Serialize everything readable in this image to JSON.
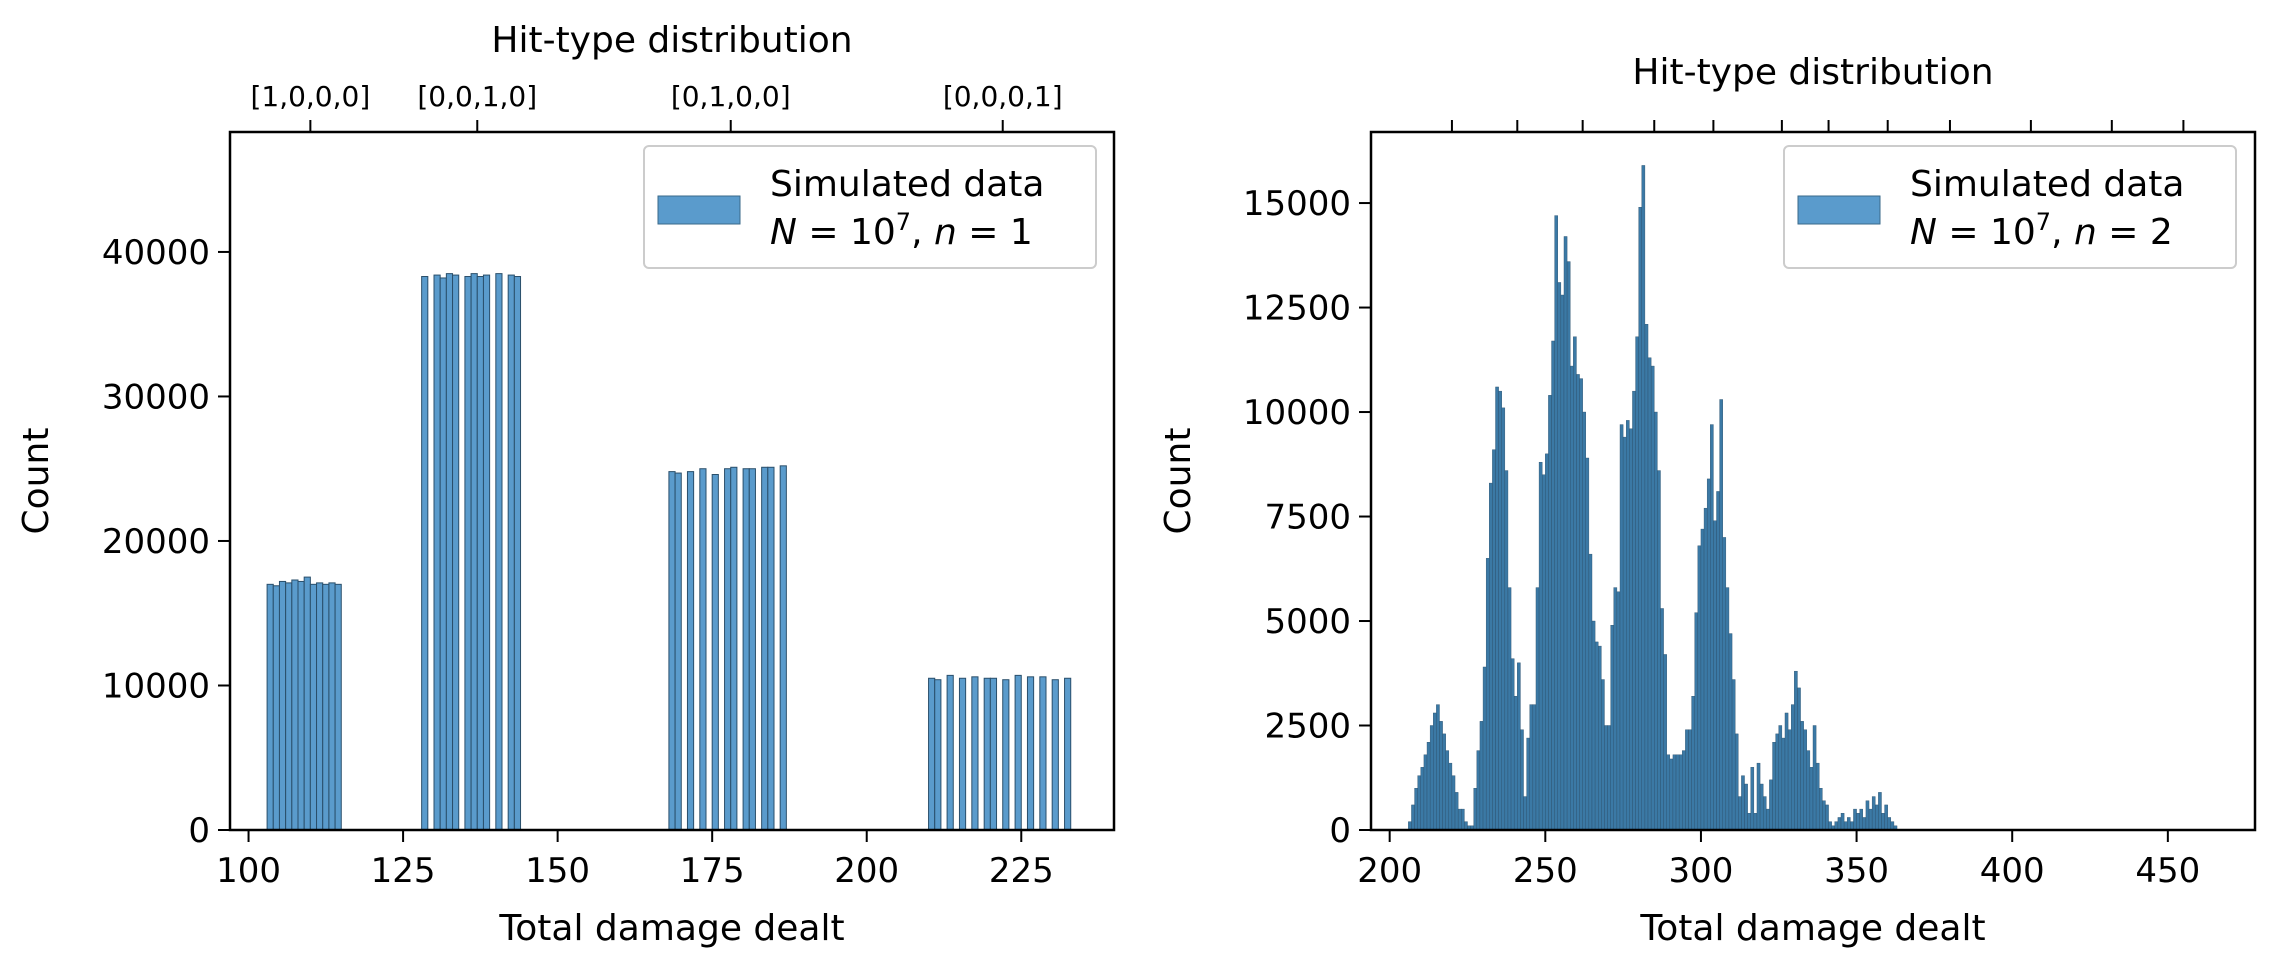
{
  "chart_data": [
    {
      "type": "bar",
      "xlabel": "Total damage dealt",
      "ylabel": "Count",
      "top_axis_title": "Hit-type distribution",
      "top_ticks": [
        {
          "x": 110,
          "label": "[1,0,0,0]"
        },
        {
          "x": 137,
          "label": "[0,0,1,0]"
        },
        {
          "x": 178,
          "label": "[0,1,0,0]"
        },
        {
          "x": 222,
          "label": "[0,0,0,1]"
        }
      ],
      "xlim": [
        97,
        240
      ],
      "ylim": [
        0,
        48300
      ],
      "x_ticks": [
        100,
        125,
        150,
        175,
        200,
        225
      ],
      "y_ticks": [
        0,
        10000,
        20000,
        30000,
        40000
      ],
      "legend": {
        "position": "top-right",
        "line1": "Simulated data",
        "line2_prefix": "N = 10",
        "line2_exp": "7",
        "line2_suffix": ", n = 1"
      },
      "bar_color": "#5a9bcc",
      "series": [
        {
          "name": "Simulated data",
          "bin_width": 1.0,
          "x": [
            103.5,
            104.5,
            105.5,
            106.5,
            107.5,
            108.5,
            109.5,
            110.5,
            111.5,
            112.5,
            113.5,
            114.5,
            128.5,
            130.5,
            131.5,
            132.5,
            133.5,
            135.5,
            136.5,
            137.5,
            138.5,
            140.5,
            142.5,
            143.5,
            168.5,
            169.5,
            171.5,
            173.5,
            175.5,
            177.5,
            178.5,
            180.5,
            181.5,
            183.5,
            184.5,
            186.5,
            210.5,
            211.5,
            213.5,
            215.5,
            217.5,
            219.5,
            220.5,
            222.5,
            224.5,
            226.5,
            228.5,
            230.5,
            232.5
          ],
          "values": [
            17000,
            16900,
            17200,
            17100,
            17300,
            17200,
            17500,
            17000,
            17100,
            17000,
            17100,
            17000,
            38300,
            38400,
            38200,
            38500,
            38400,
            38300,
            38500,
            38300,
            38400,
            38500,
            38400,
            38300,
            24800,
            24700,
            24800,
            25000,
            24600,
            25000,
            25100,
            25000,
            25000,
            25100,
            25100,
            25200,
            10500,
            10400,
            10700,
            10500,
            10600,
            10500,
            10500,
            10400,
            10700,
            10600,
            10600,
            10400,
            10500
          ]
        }
      ]
    },
    {
      "type": "bar",
      "xlabel": "Total damage dealt",
      "ylabel": "Count",
      "top_axis_title": "Hit-type distribution",
      "xlim": [
        194,
        478
      ],
      "ylim": [
        0,
        16700
      ],
      "x_ticks": [
        200,
        250,
        300,
        350,
        400,
        450
      ],
      "y_ticks": [
        0,
        2500,
        5000,
        7500,
        10000,
        12500,
        15000
      ],
      "top_tick_x": [
        220,
        241,
        262,
        285,
        304,
        326,
        341,
        360,
        380,
        406,
        432,
        455
      ],
      "legend": {
        "position": "top-right",
        "line1": "Simulated data",
        "line2_prefix": "N = 10",
        "line2_exp": "7",
        "line2_suffix": ", n = 2"
      },
      "bar_color": "#3b79a5",
      "series": [
        {
          "name": "Simulated data",
          "x_start": 206.5,
          "bin_width": 1.0,
          "values": [
            200,
            600,
            1000,
            1300,
            1500,
            1800,
            2100,
            2500,
            2800,
            3000,
            2600,
            2300,
            1900,
            1600,
            1300,
            900,
            500,
            500,
            200,
            100,
            100,
            1000,
            1900,
            2600,
            3900,
            6500,
            8300,
            9100,
            10600,
            10500,
            10100,
            8600,
            5800,
            4100,
            3200,
            4000,
            2400,
            800,
            2200,
            3000,
            3000,
            5800,
            8800,
            8500,
            9000,
            10400,
            11700,
            14700,
            13100,
            12800,
            14200,
            13600,
            11100,
            11800,
            10900,
            10800,
            10000,
            8900,
            6600,
            5000,
            4500,
            4400,
            3600,
            2500,
            2500,
            4900,
            5800,
            5700,
            9700,
            9400,
            9800,
            9600,
            10500,
            11800,
            14900,
            15900,
            12100,
            11300,
            11100,
            10000,
            8600,
            5300,
            4200,
            1800,
            1700,
            1800,
            1800,
            1800,
            1900,
            2400,
            2400,
            3200,
            5200,
            6800,
            7200,
            7700,
            8400,
            9700,
            7400,
            8100,
            10300,
            7000,
            5800,
            4700,
            3600,
            2300,
            800,
            1300,
            1100,
            400,
            1500,
            400,
            1600,
            1100,
            800,
            500,
            1200,
            2100,
            2300,
            2500,
            2200,
            2800,
            2400,
            3000,
            3800,
            3400,
            2600,
            2400,
            1900,
            1500,
            2500,
            1600,
            1000,
            700,
            600,
            200,
            100,
            200,
            300,
            400,
            200,
            300,
            200,
            500,
            400,
            500,
            300,
            700,
            500,
            800,
            600,
            900,
            400,
            600,
            300,
            200,
            100
          ],
          "values_end_note": ""
        }
      ]
    }
  ]
}
